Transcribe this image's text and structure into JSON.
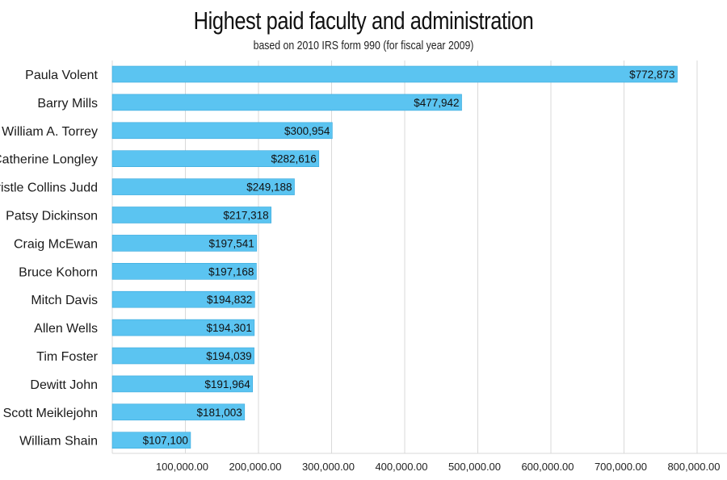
{
  "chart_data": {
    "type": "bar",
    "orientation": "horizontal",
    "title": "Highest paid faculty and administration",
    "subtitle": "based on 2010 IRS form 990 (for fiscal year 2009)",
    "categories": [
      "Paula Volent",
      "Barry Mills",
      "William A. Torrey",
      "Catherine Longley",
      "Cristle Collins Judd",
      "Patsy Dickinson",
      "Craig McEwan",
      "Bruce Kohorn",
      "Mitch Davis",
      "Allen Wells",
      "Tim Foster",
      "Dewitt John",
      "Scott Meiklejohn",
      "William Shain"
    ],
    "values": [
      772873,
      477942,
      300954,
      282616,
      249188,
      217318,
      197541,
      197168,
      194832,
      194301,
      194039,
      191964,
      181003,
      107100
    ],
    "data_labels": [
      "$772,873",
      "$477,942",
      "$300,954",
      "$282,616",
      "$249,188",
      "$217,318",
      "$197,541",
      "$197,168",
      "$194,832",
      "$194,301",
      "$194,039",
      "$191,964",
      "$181,003",
      "$107,100"
    ],
    "xlim": [
      0,
      850000
    ],
    "xticks": [
      100000,
      200000,
      300000,
      400000,
      500000,
      600000,
      700000,
      800000
    ],
    "xtick_labels": [
      "100,000.00",
      "200,000.00",
      "300,000.00",
      "400,000.00",
      "500,000.00",
      "600,000.00",
      "700,000.00",
      "800,000.00"
    ],
    "grid": true,
    "colors": {
      "bar": "#5bc4f1",
      "bar_edge": "#3aa9dd",
      "grid": "#d9d9d9"
    }
  }
}
